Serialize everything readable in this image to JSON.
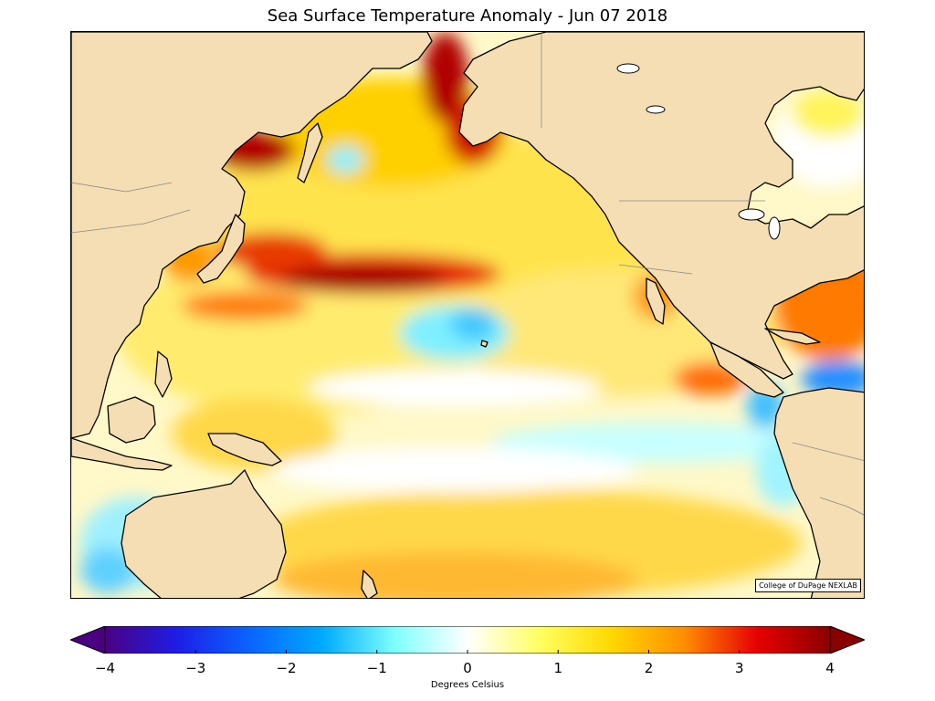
{
  "title": "Sea Surface Temperature Anomaly - Jun 07 2018",
  "credit": "College of DuPage NEXLAB",
  "colorbar": {
    "label": "Degrees Celsius",
    "min": -4,
    "max": 4,
    "ticks": [
      -4,
      -3,
      -2,
      -1,
      0,
      1,
      2,
      3,
      4
    ],
    "tick_labels": [
      "−4",
      "−3",
      "−2",
      "−1",
      "0",
      "1",
      "2",
      "3",
      "4"
    ],
    "colors": {
      "land": "#f5deb3",
      "coast": "#000000",
      "border": "#888888",
      "stops": [
        "#4b0082",
        "#1e1ee6",
        "#0a64ff",
        "#00aaff",
        "#7fffff",
        "#ffffff",
        "#ffff60",
        "#ffd700",
        "#ff8c00",
        "#e60000",
        "#8b0000"
      ]
    }
  }
}
